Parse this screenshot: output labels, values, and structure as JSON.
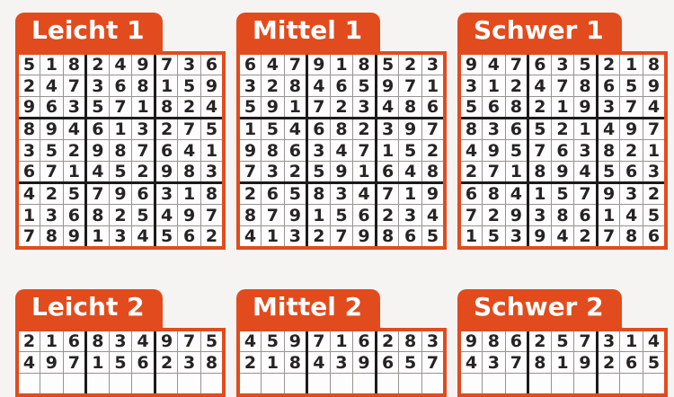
{
  "page": {
    "background": "#F5F4F2",
    "accent_orange": "#E24B1D",
    "grid_line_thin": "#979390",
    "grid_line_thick": "#1D1B1A",
    "digit_color": "#262423"
  },
  "puzzles": [
    {
      "label": "Leicht 1",
      "cut_off": false,
      "rows": [
        "518249736",
        "247368159",
        "963571824",
        "894613275",
        "352987641",
        "671452983",
        "425796318",
        "136825497",
        "789134562"
      ]
    },
    {
      "label": "Mittel 1",
      "cut_off": false,
      "rows": [
        "647918523",
        "328465971",
        "591723486",
        "154682397",
        "986347152",
        "732591648",
        "265834719",
        "879156234",
        "413279865"
      ]
    },
    {
      "label": "Schwer 1",
      "cut_off": false,
      "rows": [
        "947635218",
        "312478659",
        "568219374",
        "836521497",
        "495763821",
        "271894563",
        "684157932",
        "729386145",
        "153942786"
      ]
    },
    {
      "label": "Leicht 2",
      "cut_off": true,
      "rows": [
        "216834975",
        "497156238"
      ]
    },
    {
      "label": "Mittel 2",
      "cut_off": true,
      "rows": [
        "459716283",
        "218439657"
      ]
    },
    {
      "label": "Schwer 2",
      "cut_off": true,
      "rows": [
        "986257314",
        "437819265"
      ]
    }
  ]
}
